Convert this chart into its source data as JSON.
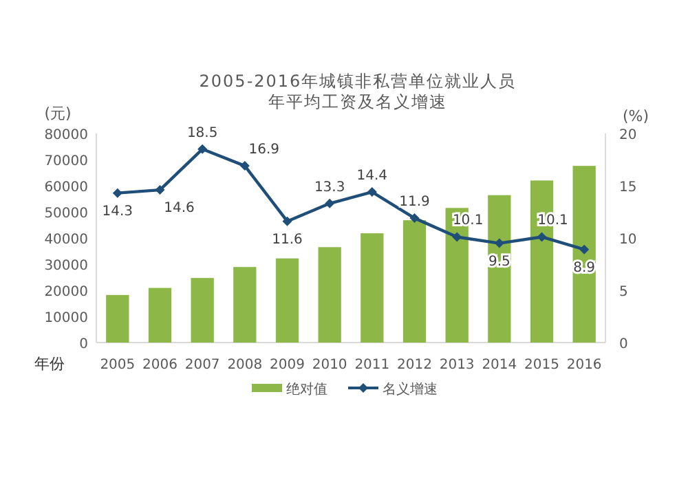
{
  "chart_data": {
    "type": "bar",
    "title": "2005-2016年城镇非私营单位就业人员",
    "subtitle": "年平均工资及名义增速",
    "ylabel": "(元)",
    "y2label": "(%)",
    "xlabel": "年份",
    "categories": [
      "2005",
      "2006",
      "2007",
      "2008",
      "2009",
      "2010",
      "2011",
      "2012",
      "2013",
      "2014",
      "2015",
      "2016"
    ],
    "series": [
      {
        "name": "绝对值",
        "color": "#8db848",
        "values": [
          18200,
          20900,
          24700,
          28900,
          32200,
          36500,
          41800,
          46800,
          51500,
          56400,
          62000,
          67600
        ]
      },
      {
        "name": "名义增速",
        "type": "line",
        "axis": "y2",
        "color": "#1f4e79",
        "marker": "diamond",
        "values": [
          14.3,
          14.6,
          18.5,
          16.9,
          11.6,
          13.3,
          14.4,
          11.9,
          10.1,
          9.5,
          10.1,
          8.9
        ],
        "value_labels": [
          "14.3",
          "14.6",
          "18.5",
          "16.9",
          "11.6",
          "13.3",
          "14.4",
          "11.9",
          "10.1",
          "9.5",
          "10.1",
          "8.9"
        ]
      }
    ],
    "ylim": [
      0,
      80000
    ],
    "yticks": [
      0,
      10000,
      20000,
      30000,
      40000,
      50000,
      60000,
      70000,
      80000
    ],
    "y2lim": [
      0,
      20
    ],
    "y2ticks": [
      0,
      5,
      10,
      15,
      20
    ],
    "grid": false,
    "legend": "bottom"
  }
}
